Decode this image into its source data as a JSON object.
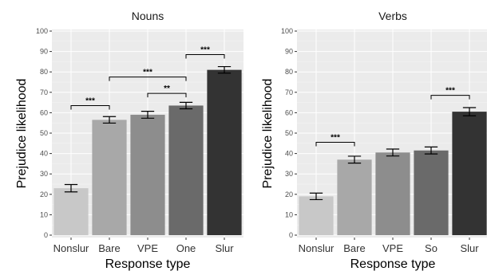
{
  "chart_data": [
    {
      "type": "bar",
      "title": "Nouns",
      "xlabel": "Response type",
      "ylabel": "Prejudice likelihood",
      "ylim": [
        0,
        100
      ],
      "yticks": [
        0,
        10,
        20,
        30,
        40,
        50,
        60,
        70,
        80,
        90,
        100
      ],
      "categories": [
        "Nonslur",
        "Bare",
        "VPE",
        "One",
        "Slur"
      ],
      "values": [
        23,
        56.5,
        59,
        63.5,
        81
      ],
      "error": [
        1.8,
        1.6,
        1.7,
        1.6,
        1.6
      ],
      "bar_colors": [
        "#c8c8c8",
        "#a8a8a8",
        "#8d8d8d",
        "#6a6a6a",
        "#333333"
      ],
      "grid": true,
      "comparisons": [
        {
          "from": "Nonslur",
          "to": "Bare",
          "y": 63.5,
          "label": "***"
        },
        {
          "from": "Bare",
          "to": "One",
          "y": 77.5,
          "label": "***"
        },
        {
          "from": "VPE",
          "to": "One",
          "y": 69.5,
          "label": "**"
        },
        {
          "from": "One",
          "to": "Slur",
          "y": 88.5,
          "label": "***"
        }
      ]
    },
    {
      "type": "bar",
      "title": "Verbs",
      "xlabel": "Response type",
      "ylabel": "Prejudice likelihood",
      "ylim": [
        0,
        100
      ],
      "yticks": [
        0,
        10,
        20,
        30,
        40,
        50,
        60,
        70,
        80,
        90,
        100
      ],
      "categories": [
        "Nonslur",
        "Bare",
        "VPE",
        "So",
        "Slur"
      ],
      "values": [
        19,
        37,
        40.5,
        41.5,
        60.5
      ],
      "error": [
        1.6,
        1.7,
        1.7,
        1.7,
        2.0
      ],
      "bar_colors": [
        "#c8c8c8",
        "#a8a8a8",
        "#8d8d8d",
        "#6a6a6a",
        "#333333"
      ],
      "grid": true,
      "comparisons": [
        {
          "from": "Nonslur",
          "to": "Bare",
          "y": 45.5,
          "label": "***"
        },
        {
          "from": "So",
          "to": "Slur",
          "y": 68.5,
          "label": "***"
        }
      ]
    }
  ]
}
